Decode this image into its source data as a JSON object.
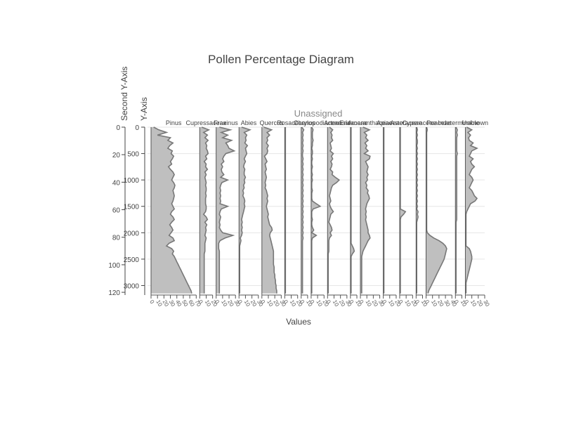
{
  "chart_data": {
    "type": "area",
    "title": "Pollen Percentage Diagram",
    "xlabel": "Values",
    "ylabel": "Y-Axis",
    "ylabel2": "Second Y-Axis",
    "group_label": "Unassigned",
    "grid": true,
    "ylim": [
      3180,
      0
    ],
    "yticks": [
      0,
      500,
      1000,
      1500,
      2000,
      2500,
      3000
    ],
    "ylim2": [
      0,
      122
    ],
    "yticks2": [
      0,
      20,
      40,
      60,
      80,
      100,
      120
    ],
    "depth": [
      0,
      50,
      100,
      150,
      200,
      250,
      300,
      350,
      400,
      450,
      500,
      550,
      600,
      650,
      700,
      750,
      800,
      850,
      900,
      950,
      1000,
      1050,
      1100,
      1150,
      1200,
      1250,
      1300,
      1350,
      1400,
      1450,
      1500,
      1550,
      1600,
      1650,
      1700,
      1750,
      1800,
      1850,
      1900,
      1950,
      2000,
      2050,
      2100,
      2150,
      2200,
      2250,
      2300,
      2350,
      2400,
      2450,
      2500,
      2550,
      2600,
      2650,
      2700,
      2750,
      2800,
      2850,
      2900,
      2950,
      3000,
      3050,
      3100,
      3150
    ],
    "series": [
      {
        "name": "Pinus",
        "xmax": 70,
        "ticks": [
          0,
          10,
          20,
          30,
          40,
          50,
          60,
          70
        ],
        "values": [
          4,
          12,
          24,
          10,
          30,
          26,
          34,
          29,
          26,
          33,
          31,
          35,
          33,
          30,
          32,
          27,
          30,
          34,
          36,
          34,
          32,
          35,
          37,
          36,
          34,
          35,
          36,
          35,
          34,
          32,
          34,
          36,
          32,
          30,
          34,
          36,
          32,
          29,
          32,
          34,
          31,
          28,
          34,
          36,
          28,
          24,
          32,
          35,
          33,
          36,
          38,
          40,
          42,
          44,
          46,
          48,
          50,
          52,
          54,
          56,
          58,
          60,
          62,
          63
        ]
      },
      {
        "name": "Cupressaceae",
        "xmax": 20,
        "ticks": [
          0,
          10,
          20
        ],
        "values": [
          3,
          14,
          6,
          12,
          8,
          13,
          9,
          11,
          10,
          12,
          13,
          9,
          11,
          7,
          10,
          9,
          12,
          8,
          10,
          8,
          9,
          10,
          9,
          10,
          10,
          9,
          10,
          9,
          9,
          9,
          10,
          10,
          9,
          6,
          10,
          12,
          8,
          11,
          9,
          10,
          9,
          8,
          10,
          9,
          8,
          8,
          8,
          8,
          7,
          7,
          7,
          7,
          7,
          7,
          7,
          7,
          7,
          7,
          7,
          7,
          7,
          7,
          7,
          7
        ]
      },
      {
        "name": "Fraxinus",
        "xmax": 30,
        "ticks": [
          0,
          10,
          20,
          30
        ],
        "values": [
          5,
          22,
          8,
          18,
          10,
          24,
          15,
          18,
          20,
          28,
          15,
          12,
          10,
          12,
          8,
          10,
          8,
          9,
          12,
          7,
          18,
          9,
          7,
          6,
          7,
          6,
          7,
          6,
          7,
          6,
          18,
          8,
          6,
          5,
          7,
          6,
          5,
          6,
          5,
          7,
          10,
          26,
          14,
          6,
          4,
          4,
          4,
          5,
          5,
          5,
          5,
          5,
          5,
          5,
          5,
          5,
          5,
          5,
          5,
          5,
          5,
          5,
          5,
          5
        ]
      },
      {
        "name": "Abies",
        "xmax": 30,
        "ticks": [
          0,
          10,
          20,
          30
        ],
        "values": [
          4,
          17,
          8,
          12,
          10,
          11,
          9,
          13,
          10,
          11,
          12,
          10,
          8,
          10,
          8,
          7,
          9,
          8,
          8,
          10,
          8,
          9,
          7,
          8,
          6,
          7,
          6,
          8,
          9,
          8,
          9,
          8,
          7,
          6,
          5,
          4,
          5,
          4,
          5,
          4,
          5,
          4,
          2,
          3,
          2,
          1,
          1,
          1,
          1,
          1,
          1,
          1,
          1,
          1,
          1,
          1,
          1,
          1,
          1,
          1,
          1,
          1,
          1,
          1
        ]
      },
      {
        "name": "Quercus",
        "xmax": 30,
        "ticks": [
          0,
          10,
          20,
          30
        ],
        "values": [
          3,
          15,
          8,
          12,
          8,
          9,
          7,
          10,
          8,
          9,
          8,
          4,
          6,
          8,
          5,
          6,
          7,
          5,
          6,
          7,
          6,
          5,
          6,
          5,
          7,
          8,
          9,
          8,
          9,
          8,
          7,
          8,
          9,
          10,
          9,
          10,
          11,
          12,
          15,
          16,
          13,
          12,
          13,
          14,
          15,
          16,
          17,
          18,
          18,
          18,
          18,
          18,
          18,
          19,
          19,
          19,
          20,
          20,
          21,
          21,
          22,
          22,
          23,
          23
        ]
      },
      {
        "name": "Rosaceae",
        "xmax": 20,
        "ticks": [
          0,
          10,
          20
        ],
        "values": [
          1,
          1,
          1,
          1,
          1,
          1,
          1,
          1,
          1,
          1,
          1,
          1,
          1,
          1,
          1,
          1,
          1,
          1,
          1,
          1,
          1,
          1,
          1,
          1,
          1,
          1,
          1,
          1,
          1,
          1,
          1,
          1,
          1,
          1,
          1,
          1,
          1,
          1,
          1,
          1,
          1,
          1,
          1,
          1,
          1,
          1,
          1,
          1,
          1,
          1,
          1,
          1,
          1,
          1,
          1,
          1,
          1,
          1,
          1,
          1,
          1,
          1,
          1,
          1
        ]
      },
      {
        "name": "Corylus",
        "xmax": 10,
        "ticks": [
          0,
          10
        ],
        "values": [
          1,
          4,
          2,
          3,
          2,
          3,
          2,
          3,
          2,
          3,
          2,
          2,
          3,
          2,
          3,
          2,
          3,
          2,
          3,
          2,
          3,
          2,
          3,
          2,
          3,
          2,
          3,
          2,
          3,
          2,
          3,
          2,
          3,
          2,
          3,
          2,
          3,
          2,
          3,
          2,
          3,
          2,
          3,
          2,
          2,
          2,
          2,
          2,
          2,
          2,
          2,
          2,
          2,
          2,
          2,
          2,
          2,
          2,
          2,
          2,
          2,
          2,
          2,
          2
        ]
      },
      {
        "name": "Chenopodiaceae",
        "xmax": 20,
        "ticks": [
          0,
          10,
          20
        ],
        "values": [
          1,
          3,
          2,
          2,
          2,
          3,
          2,
          2,
          1,
          2,
          2,
          1,
          2,
          1,
          1,
          2,
          1,
          1,
          2,
          1,
          2,
          1,
          1,
          1,
          2,
          1,
          1,
          1,
          2,
          8,
          14,
          3,
          1,
          1,
          1,
          2,
          1,
          1,
          2,
          4,
          1,
          8,
          2,
          1,
          1,
          1,
          1,
          1,
          1,
          1,
          1,
          1,
          1,
          1,
          1,
          1,
          1,
          1,
          1,
          1,
          1,
          1,
          1,
          1
        ]
      },
      {
        "name": "Artemisia",
        "xmax": 30,
        "ticks": [
          0,
          10,
          20,
          30
        ],
        "values": [
          3,
          8,
          5,
          7,
          6,
          8,
          4,
          5,
          6,
          4,
          9,
          6,
          8,
          5,
          7,
          6,
          4,
          8,
          7,
          12,
          18,
          14,
          8,
          6,
          5,
          4,
          3,
          4,
          5,
          3,
          4,
          6,
          9,
          5,
          4,
          3,
          2,
          4,
          6,
          7,
          4,
          6,
          3,
          2,
          2,
          2,
          2,
          2,
          1,
          1,
          1,
          1,
          1,
          1,
          1,
          1,
          1,
          1,
          1,
          1,
          1,
          1,
          1,
          1
        ]
      },
      {
        "name": "Ericaceae",
        "xmax": 10,
        "ticks": [
          0,
          10
        ],
        "values": [
          1,
          1,
          1,
          1,
          1,
          1,
          1,
          1,
          1,
          1,
          1,
          1,
          1,
          1,
          1,
          1,
          1,
          1,
          1,
          1,
          1,
          1,
          1,
          1,
          1,
          1,
          1,
          1,
          1,
          1,
          1,
          1,
          1,
          1,
          1,
          1,
          1,
          1,
          1,
          1,
          1,
          1,
          1,
          1,
          1,
          3,
          5,
          6,
          3,
          1,
          1,
          1,
          1,
          1,
          1,
          1,
          1,
          1,
          1,
          1,
          1,
          1,
          1,
          1
        ]
      },
      {
        "name": "Amaranthaceae",
        "xmax": 30,
        "ticks": [
          0,
          10,
          20,
          30
        ],
        "values": [
          4,
          14,
          6,
          10,
          8,
          12,
          7,
          10,
          8,
          12,
          6,
          15,
          14,
          8,
          10,
          12,
          11,
          10,
          12,
          10,
          11,
          8,
          10,
          9,
          12,
          11,
          13,
          14,
          12,
          10,
          9,
          8,
          9,
          8,
          9,
          8,
          9,
          10,
          11,
          12,
          12,
          14,
          15,
          12,
          10,
          8,
          6,
          4,
          3,
          2,
          2,
          2,
          2,
          2,
          2,
          2,
          2,
          2,
          2,
          2,
          2,
          2,
          2,
          2
        ]
      },
      {
        "name": "Apiaceae",
        "xmax": 20,
        "ticks": [
          0,
          10,
          20
        ],
        "values": [
          1,
          1,
          1,
          1,
          1,
          1,
          1,
          1,
          1,
          1,
          1,
          1,
          1,
          1,
          1,
          1,
          1,
          1,
          1,
          1,
          1,
          1,
          1,
          1,
          1,
          1,
          1,
          1,
          1,
          1,
          1,
          1,
          1,
          1,
          1,
          1,
          1,
          1,
          1,
          1,
          1,
          1,
          1,
          1,
          1,
          1,
          1,
          1,
          1,
          1,
          1,
          1,
          1,
          1,
          1,
          1,
          1,
          1,
          1,
          1,
          1,
          1,
          1,
          1
        ]
      },
      {
        "name": "Asteraceae",
        "xmax": 20,
        "ticks": [
          0,
          10,
          20
        ],
        "values": [
          1,
          1,
          1,
          1,
          1,
          1,
          1,
          1,
          1,
          1,
          1,
          1,
          1,
          1,
          1,
          1,
          1,
          1,
          1,
          1,
          1,
          1,
          1,
          1,
          1,
          1,
          1,
          1,
          1,
          1,
          1,
          1,
          9,
          6,
          2,
          1,
          1,
          1,
          1,
          1,
          1,
          1,
          1,
          1,
          1,
          1,
          1,
          1,
          1,
          1,
          1,
          1,
          1,
          1,
          1,
          1,
          1,
          1,
          1,
          1,
          1,
          1,
          1,
          1
        ]
      },
      {
        "name": "Cyperaceae",
        "xmax": 10,
        "ticks": [
          0,
          10
        ],
        "values": [
          1,
          2,
          1,
          2,
          1,
          2,
          2,
          1,
          2,
          1,
          2,
          1,
          2,
          1,
          2,
          1,
          2,
          1,
          2,
          1,
          2,
          1,
          2,
          1,
          2,
          1,
          2,
          1,
          2,
          1,
          2,
          1,
          3,
          2,
          3,
          2,
          1,
          1,
          1,
          1,
          1,
          1,
          1,
          1,
          1,
          1,
          1,
          1,
          1,
          1,
          1,
          1,
          1,
          1,
          1,
          1,
          1,
          1,
          1,
          1,
          1,
          1,
          1,
          1
        ]
      },
      {
        "name": "Poaceae",
        "xmax": 40,
        "ticks": [
          0,
          10,
          20,
          30,
          40
        ],
        "values": [
          1,
          2,
          1,
          1,
          1,
          1,
          1,
          1,
          1,
          1,
          1,
          1,
          1,
          1,
          1,
          1,
          1,
          1,
          1,
          1,
          1,
          1,
          1,
          1,
          1,
          1,
          1,
          1,
          1,
          1,
          1,
          1,
          1,
          1,
          1,
          1,
          1,
          1,
          1,
          1,
          2,
          6,
          12,
          20,
          26,
          30,
          32,
          31,
          30,
          29,
          28,
          26,
          24,
          22,
          20,
          18,
          16,
          14,
          12,
          10,
          8,
          6,
          4,
          3
        ]
      },
      {
        "name": "Indeterminable",
        "xmax": 10,
        "ticks": [
          0,
          10
        ],
        "values": [
          1,
          3,
          2,
          3,
          2,
          2,
          2,
          2,
          2,
          2,
          3,
          2,
          2,
          2,
          2,
          2,
          2,
          2,
          2,
          2,
          2,
          2,
          2,
          2,
          2,
          2,
          2,
          2,
          2,
          2,
          2,
          2,
          2,
          2,
          2,
          2,
          1,
          1,
          1,
          1,
          1,
          1,
          1,
          1,
          1,
          1,
          1,
          1,
          1,
          1,
          1,
          1,
          1,
          1,
          1,
          1,
          1,
          1,
          1,
          1,
          1,
          1,
          1,
          1
        ]
      },
      {
        "name": "Unknown",
        "xmax": 30,
        "ticks": [
          0,
          10,
          20,
          30
        ],
        "values": [
          2,
          10,
          4,
          8,
          5,
          6,
          12,
          8,
          18,
          10,
          8,
          6,
          12,
          8,
          10,
          14,
          10,
          8,
          6,
          10,
          12,
          10,
          8,
          6,
          10,
          12,
          14,
          18,
          15,
          8,
          6,
          4,
          2,
          1,
          1,
          1,
          1,
          1,
          1,
          1,
          1,
          1,
          1,
          1,
          1,
          1,
          6,
          8,
          9,
          10,
          10,
          9,
          8,
          7,
          6,
          5,
          4,
          3,
          2,
          1,
          1,
          1,
          1,
          1
        ]
      }
    ]
  }
}
